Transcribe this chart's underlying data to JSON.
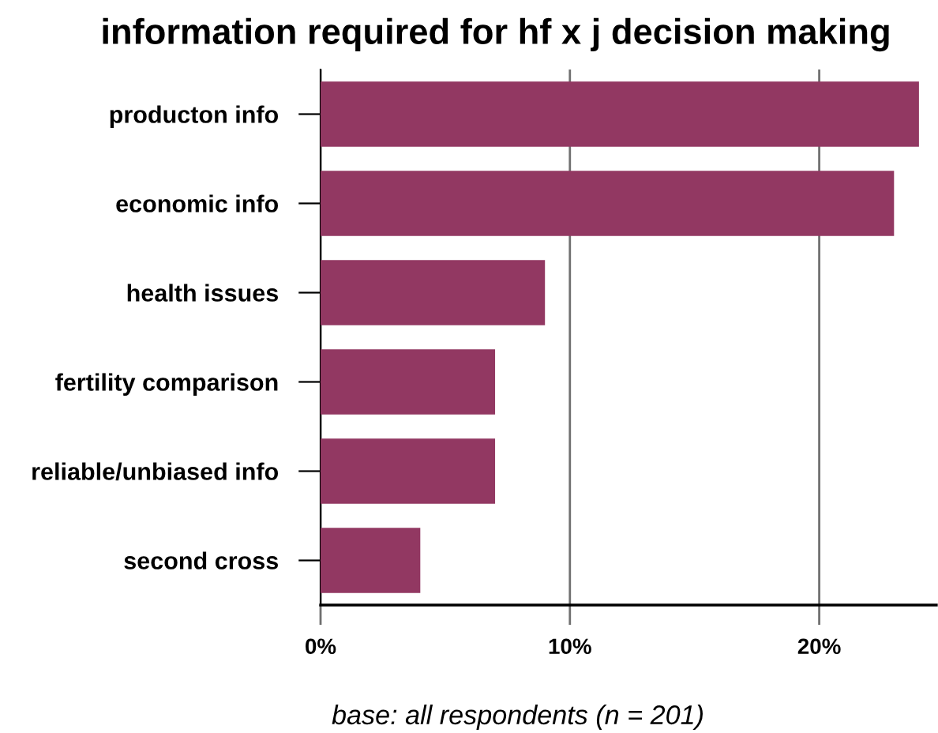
{
  "chart_data": {
    "type": "bar",
    "orientation": "horizontal",
    "title": "information required for hf x j decision making",
    "categories": [
      "producton info",
      "economic info",
      "health issues",
      "fertility comparison",
      "reliable/unbiased info",
      "second cross"
    ],
    "values": [
      24,
      23,
      9,
      7,
      7,
      4
    ],
    "color": "#923862",
    "xlim": [
      0,
      24.7
    ],
    "xticks": [
      {
        "value": 0,
        "label": "0%"
      },
      {
        "value": 10,
        "label": "10%"
      },
      {
        "value": 20,
        "label": "20%"
      }
    ],
    "grid": "x",
    "annotations": [
      "base: all respondents (n = 201)"
    ]
  }
}
